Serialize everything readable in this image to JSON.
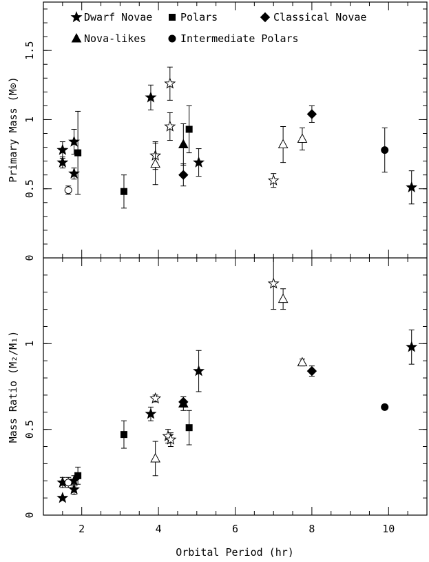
{
  "chart_data": {
    "type": "scatter",
    "xlabel": "Orbital Period (hr)",
    "xlim": [
      1,
      11
    ],
    "xticks": [
      2,
      4,
      6,
      8,
      10
    ],
    "legend": [
      {
        "label": "Dwarf Novae",
        "marker": "star"
      },
      {
        "label": "Polars",
        "marker": "square"
      },
      {
        "label": "Classical Novae",
        "marker": "diamond"
      },
      {
        "label": "Nova-likes",
        "marker": "triangle"
      },
      {
        "label": "Intermediate Polars",
        "marker": "circle"
      }
    ],
    "panels": [
      {
        "id": "top",
        "ylabel": "Primary Mass (M⊙)",
        "ylim": [
          0,
          1.85
        ],
        "yticks": [
          0,
          0.5,
          1,
          1.5
        ],
        "points": [
          {
            "marker": "star",
            "filled": true,
            "x": 1.5,
            "y": 0.78,
            "err": 0.06
          },
          {
            "marker": "star",
            "filled": true,
            "x": 1.5,
            "y": 0.69,
            "err": 0.04
          },
          {
            "marker": "star",
            "filled": true,
            "x": 1.8,
            "y": 0.84,
            "err": 0.09
          },
          {
            "marker": "star",
            "filled": true,
            "x": 1.8,
            "y": 0.61,
            "err": 0.04
          },
          {
            "marker": "circle",
            "filled": false,
            "x": 1.65,
            "y": 0.49,
            "err": 0.03
          },
          {
            "marker": "square",
            "filled": true,
            "x": 1.9,
            "y": 0.76,
            "err": 0.3
          },
          {
            "marker": "square",
            "filled": true,
            "x": 3.1,
            "y": 0.48,
            "err": 0.12
          },
          {
            "marker": "star",
            "filled": true,
            "x": 3.8,
            "y": 1.16,
            "err": 0.09
          },
          {
            "marker": "star",
            "filled": false,
            "x": 3.92,
            "y": 0.74,
            "err": 0.1
          },
          {
            "marker": "triangle",
            "filled": false,
            "x": 3.92,
            "y": 0.68,
            "err": 0.15
          },
          {
            "marker": "star",
            "filled": false,
            "x": 4.3,
            "y": 1.26,
            "err": 0.12
          },
          {
            "marker": "star",
            "filled": false,
            "x": 4.3,
            "y": 0.95,
            "err": 0.1
          },
          {
            "marker": "triangle",
            "filled": true,
            "x": 4.65,
            "y": 0.82,
            "err": 0.15
          },
          {
            "marker": "diamond",
            "filled": true,
            "x": 4.65,
            "y": 0.6,
            "err": 0.08
          },
          {
            "marker": "square",
            "filled": true,
            "x": 4.8,
            "y": 0.93,
            "err": 0.17
          },
          {
            "marker": "star",
            "filled": true,
            "x": 5.05,
            "y": 0.69,
            "err": 0.1
          },
          {
            "marker": "star",
            "filled": false,
            "x": 7.0,
            "y": 0.56,
            "err": 0.05
          },
          {
            "marker": "triangle",
            "filled": false,
            "x": 7.25,
            "y": 0.82,
            "err": 0.13
          },
          {
            "marker": "triangle",
            "filled": false,
            "x": 7.75,
            "y": 0.86,
            "err": 0.08
          },
          {
            "marker": "diamond",
            "filled": true,
            "x": 8.0,
            "y": 1.04,
            "err": 0.06
          },
          {
            "marker": "circle",
            "filled": true,
            "x": 9.9,
            "y": 0.78,
            "err": 0.16
          },
          {
            "marker": "star",
            "filled": true,
            "x": 10.6,
            "y": 0.51,
            "err": 0.12
          }
        ]
      },
      {
        "id": "bottom",
        "ylabel": "Mass Ratio (M₂/M₁)",
        "ylim": [
          0,
          1.5
        ],
        "yticks": [
          0,
          0.5,
          1
        ],
        "points": [
          {
            "marker": "star",
            "filled": true,
            "x": 1.5,
            "y": 0.19,
            "err": 0.03
          },
          {
            "marker": "star",
            "filled": true,
            "x": 1.5,
            "y": 0.1,
            "err": 0.0
          },
          {
            "marker": "circle",
            "filled": false,
            "x": 1.65,
            "y": 0.19,
            "err": 0.03
          },
          {
            "marker": "star",
            "filled": true,
            "x": 1.8,
            "y": 0.2,
            "err": 0.03
          },
          {
            "marker": "star",
            "filled": true,
            "x": 1.8,
            "y": 0.15,
            "err": 0.03
          },
          {
            "marker": "square",
            "filled": true,
            "x": 1.9,
            "y": 0.23,
            "err": 0.05
          },
          {
            "marker": "square",
            "filled": true,
            "x": 3.1,
            "y": 0.47,
            "err": 0.08
          },
          {
            "marker": "star",
            "filled": true,
            "x": 3.8,
            "y": 0.59,
            "err": 0.04
          },
          {
            "marker": "star",
            "filled": false,
            "x": 3.92,
            "y": 0.68,
            "err": 0.02
          },
          {
            "marker": "triangle",
            "filled": false,
            "x": 3.92,
            "y": 0.33,
            "err": 0.1
          },
          {
            "marker": "star",
            "filled": false,
            "x": 4.25,
            "y": 0.46,
            "err": 0.04
          },
          {
            "marker": "star",
            "filled": false,
            "x": 4.32,
            "y": 0.44,
            "err": 0.04
          },
          {
            "marker": "triangle",
            "filled": true,
            "x": 4.65,
            "y": 0.65,
            "err": 0.04
          },
          {
            "marker": "diamond",
            "filled": true,
            "x": 4.65,
            "y": 0.66,
            "err": 0.03
          },
          {
            "marker": "square",
            "filled": true,
            "x": 4.8,
            "y": 0.51,
            "err": 0.1
          },
          {
            "marker": "star",
            "filled": true,
            "x": 5.05,
            "y": 0.84,
            "err": 0.12
          },
          {
            "marker": "star",
            "filled": false,
            "x": 7.0,
            "y": 1.35,
            "err": 0.15
          },
          {
            "marker": "triangle",
            "filled": false,
            "x": 7.25,
            "y": 1.26,
            "err": 0.06
          },
          {
            "marker": "triangle",
            "filled": false,
            "x": 7.75,
            "y": 0.89,
            "err": 0.02
          },
          {
            "marker": "diamond",
            "filled": true,
            "x": 8.0,
            "y": 0.84,
            "err": 0.03
          },
          {
            "marker": "circle",
            "filled": true,
            "x": 9.9,
            "y": 0.63,
            "err": 0.0
          },
          {
            "marker": "star",
            "filled": true,
            "x": 10.6,
            "y": 0.98,
            "err": 0.1
          }
        ]
      }
    ]
  }
}
